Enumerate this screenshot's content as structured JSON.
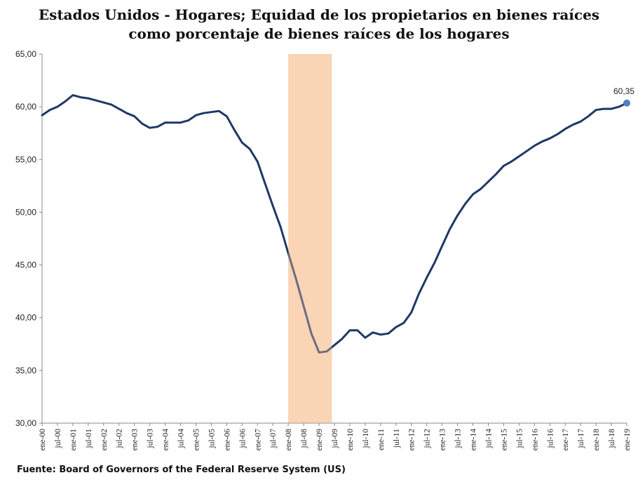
{
  "source": "Fuente: Board of Governors of the Federal Reserve System (US)",
  "chart_data": {
    "type": "line",
    "title_lines": [
      "Estados Unidos - Hogares; Equidad de los propietarios en bienes raíces",
      "como porcentaje de bienes raíces de los hogares"
    ],
    "xlabel": "",
    "ylabel": "",
    "ylim": [
      30,
      65
    ],
    "yticks": [
      "30,00",
      "35,00",
      "40,00",
      "45,00",
      "50,00",
      "55,00",
      "60,00",
      "65,00"
    ],
    "xticks": [
      "ene-00",
      "jul-00",
      "ene-01",
      "jul-01",
      "ene-02",
      "jul-02",
      "ene-03",
      "jul-03",
      "ene-04",
      "jul-04",
      "ene-05",
      "jul-05",
      "ene-06",
      "jul-06",
      "ene-07",
      "jul-07",
      "ene-08",
      "jul-08",
      "ene-09",
      "jul-09",
      "ene-10",
      "jul-10",
      "ene-11",
      "jul-11",
      "ene-12",
      "jul-12",
      "ene-13",
      "jul-13",
      "ene-14",
      "jul-14",
      "ene-15",
      "jul-15",
      "ene-16",
      "jul-16",
      "ene-17",
      "jul-17",
      "ene-18",
      "jul-18",
      "ene-19"
    ],
    "grid": false,
    "recession_band": {
      "start": "2008-01",
      "end": "2009-06",
      "color": "#f9d5b5"
    },
    "line_color": "#1f3864",
    "marker_color": "#4f81bd",
    "last_point_label": "60,35",
    "series": [
      {
        "x": [
          "2000-01",
          "2000-04",
          "2000-07",
          "2000-10",
          "2001-01",
          "2001-04",
          "2001-07",
          "2001-10",
          "2002-01",
          "2002-04",
          "2002-07",
          "2002-10",
          "2003-01",
          "2003-04",
          "2003-07",
          "2003-10",
          "2004-01",
          "2004-04",
          "2004-07",
          "2004-10",
          "2005-01",
          "2005-04",
          "2005-07",
          "2005-10",
          "2006-01",
          "2006-04",
          "2006-07",
          "2006-10",
          "2007-01",
          "2007-04",
          "2007-07",
          "2007-10",
          "2008-01",
          "2008-04",
          "2008-07",
          "2008-10",
          "2009-01",
          "2009-04",
          "2009-07",
          "2009-10",
          "2010-01",
          "2010-04",
          "2010-07",
          "2010-10",
          "2011-01",
          "2011-04",
          "2011-07",
          "2011-10",
          "2012-01",
          "2012-04",
          "2012-07",
          "2012-10",
          "2013-01",
          "2013-04",
          "2013-07",
          "2013-10",
          "2014-01",
          "2014-04",
          "2014-07",
          "2014-10",
          "2015-01",
          "2015-04",
          "2015-07",
          "2015-10",
          "2016-01",
          "2016-04",
          "2016-07",
          "2016-10",
          "2017-01",
          "2017-04",
          "2017-07",
          "2017-10",
          "2018-01",
          "2018-04",
          "2018-07",
          "2018-10",
          "2019-01"
        ],
        "values": [
          59.2,
          59.7,
          60.0,
          60.5,
          61.1,
          60.9,
          60.8,
          60.6,
          60.4,
          60.2,
          59.8,
          59.4,
          59.1,
          58.4,
          58.0,
          58.1,
          58.5,
          58.5,
          58.5,
          58.7,
          59.2,
          59.4,
          59.5,
          59.6,
          59.1,
          57.8,
          56.6,
          56.0,
          54.8,
          52.7,
          50.6,
          48.6,
          46.1,
          43.7,
          41.1,
          38.5,
          36.7,
          36.8,
          37.4,
          38.0,
          38.8,
          38.8,
          38.1,
          38.6,
          38.4,
          38.5,
          39.1,
          39.5,
          40.5,
          42.3,
          43.8,
          45.2,
          46.8,
          48.4,
          49.7,
          50.8,
          51.7,
          52.2,
          52.9,
          53.6,
          54.4,
          54.8,
          55.3,
          55.8,
          56.3,
          56.7,
          57.0,
          57.4,
          57.9,
          58.3,
          58.6,
          59.1,
          59.7,
          59.8,
          59.8,
          60.0,
          60.35
        ]
      }
    ]
  }
}
